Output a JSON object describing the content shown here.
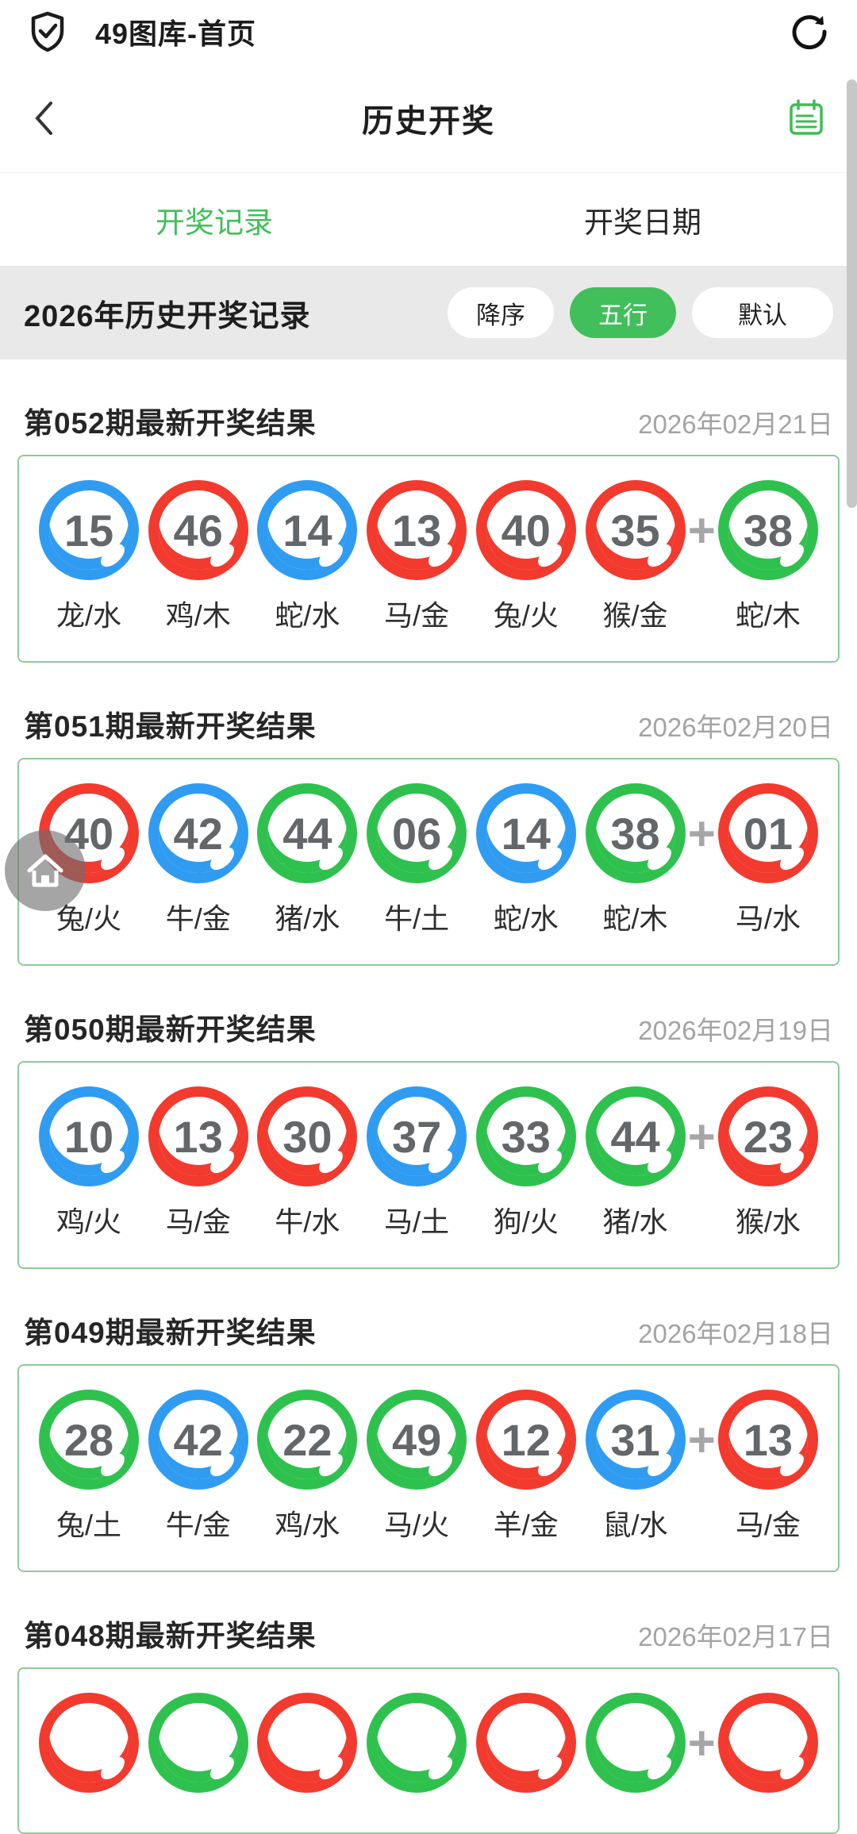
{
  "colors": {
    "accent_green": "#41bf5b",
    "ball_red": "#f23a2e",
    "ball_blue": "#2f9cf2",
    "ball_green": "#2fc14e",
    "card_border_green": "#8ccb9b"
  },
  "app_bar": {
    "title": "49图库-首页"
  },
  "nav": {
    "title": "历史开奖"
  },
  "tabs": [
    {
      "label": "开奖记录",
      "active": true
    },
    {
      "label": "开奖日期",
      "active": false
    }
  ],
  "filter": {
    "title": "2026年历史开奖记录",
    "buttons": [
      {
        "label": "降序",
        "active": false,
        "wide": false
      },
      {
        "label": "五行",
        "active": true,
        "wide": false
      },
      {
        "label": "默认",
        "active": false,
        "wide": true
      }
    ]
  },
  "plus_sign": "+",
  "cards": [
    {
      "title": "第052期最新开奖结果",
      "date": "2026年02月21日",
      "balls": [
        {
          "num": "15",
          "color": "blue",
          "label": "龙/水"
        },
        {
          "num": "46",
          "color": "red",
          "label": "鸡/木"
        },
        {
          "num": "14",
          "color": "blue",
          "label": "蛇/水"
        },
        {
          "num": "13",
          "color": "red",
          "label": "马/金"
        },
        {
          "num": "40",
          "color": "red",
          "label": "兔/火"
        },
        {
          "num": "35",
          "color": "red",
          "label": "猴/金"
        }
      ],
      "special": {
        "num": "38",
        "color": "green",
        "label": "蛇/木"
      }
    },
    {
      "title": "第051期最新开奖结果",
      "date": "2026年02月20日",
      "balls": [
        {
          "num": "40",
          "color": "red",
          "label": "兔/火"
        },
        {
          "num": "42",
          "color": "blue",
          "label": "牛/金"
        },
        {
          "num": "44",
          "color": "green",
          "label": "猪/水"
        },
        {
          "num": "06",
          "color": "green",
          "label": "牛/土"
        },
        {
          "num": "14",
          "color": "blue",
          "label": "蛇/水"
        },
        {
          "num": "38",
          "color": "green",
          "label": "蛇/木"
        }
      ],
      "special": {
        "num": "01",
        "color": "red",
        "label": "马/水"
      }
    },
    {
      "title": "第050期最新开奖结果",
      "date": "2026年02月19日",
      "balls": [
        {
          "num": "10",
          "color": "blue",
          "label": "鸡/火"
        },
        {
          "num": "13",
          "color": "red",
          "label": "马/金"
        },
        {
          "num": "30",
          "color": "red",
          "label": "牛/水"
        },
        {
          "num": "37",
          "color": "blue",
          "label": "马/土"
        },
        {
          "num": "33",
          "color": "green",
          "label": "狗/火"
        },
        {
          "num": "44",
          "color": "green",
          "label": "猪/水"
        }
      ],
      "special": {
        "num": "23",
        "color": "red",
        "label": "猴/水"
      }
    },
    {
      "title": "第049期最新开奖结果",
      "date": "2026年02月18日",
      "balls": [
        {
          "num": "28",
          "color": "green",
          "label": "兔/土"
        },
        {
          "num": "42",
          "color": "blue",
          "label": "牛/金"
        },
        {
          "num": "22",
          "color": "green",
          "label": "鸡/水"
        },
        {
          "num": "49",
          "color": "green",
          "label": "马/火"
        },
        {
          "num": "12",
          "color": "red",
          "label": "羊/金"
        },
        {
          "num": "31",
          "color": "blue",
          "label": "鼠/水"
        }
      ],
      "special": {
        "num": "13",
        "color": "red",
        "label": "马/金"
      }
    },
    {
      "title": "第048期最新开奖结果",
      "date": "2026年02月17日",
      "balls": [
        {
          "num": "",
          "color": "red",
          "label": ""
        },
        {
          "num": "",
          "color": "green",
          "label": ""
        },
        {
          "num": "",
          "color": "red",
          "label": ""
        },
        {
          "num": "",
          "color": "green",
          "label": ""
        },
        {
          "num": "",
          "color": "red",
          "label": ""
        },
        {
          "num": "",
          "color": "green",
          "label": ""
        }
      ],
      "special": {
        "num": "",
        "color": "red",
        "label": ""
      }
    }
  ]
}
